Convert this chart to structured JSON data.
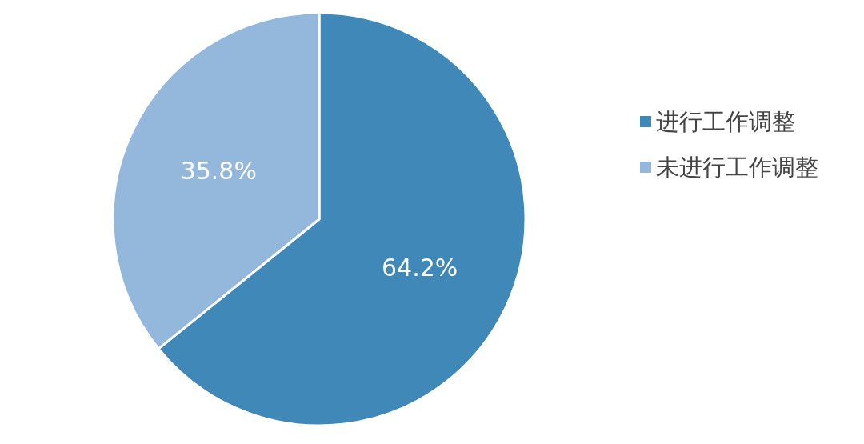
{
  "chart_data": {
    "type": "pie",
    "categories": [
      "进行工作调整",
      "未进行工作调整"
    ],
    "values": [
      64.2,
      35.8
    ],
    "value_labels": [
      "64.2%",
      "35.8%"
    ],
    "colors": [
      "#3f88b8",
      "#93b8dc"
    ],
    "legend": "right"
  }
}
